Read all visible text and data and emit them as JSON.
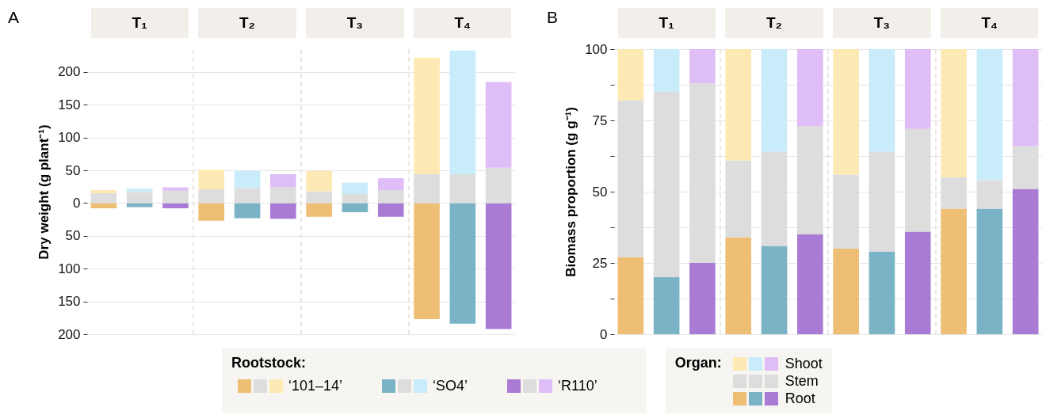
{
  "chart_data": [
    {
      "type": "bar",
      "annotations": [
        "A",
        "T₁",
        "T₂",
        "T₃",
        "T₄"
      ],
      "ylabel": "Dry weight (g plant⁻¹)",
      "categories": [
        null,
        null,
        null,
        null,
        null,
        null,
        null,
        null,
        null,
        null,
        null,
        null
      ],
      "stacked": true,
      "grid": "y",
      "legend": "bottom",
      "legend_title": "Organ:",
      "ylim": [
        -200,
        235
      ],
      "yticks": [
        {
          "value": -200,
          "label": "200"
        },
        {
          "value": -150,
          "label": "150"
        },
        {
          "value": -100,
          "label": "100"
        },
        {
          "value": -50,
          "label": "50"
        },
        0,
        50,
        100,
        150,
        200
      ],
      "series": [
        {
          "name": "Root",
          "colors": [
            "#eebe75",
            "#7bb3c6",
            "#a97bd4",
            "#eebe75",
            "#7bb3c6",
            "#a97bd4",
            "#eebe75",
            "#7bb3c6",
            "#a97bd4",
            "#eebe75",
            "#7bb3c6",
            "#a97bd4"
          ],
          "values": [
            -8,
            -6,
            -8,
            -27,
            -23,
            -24,
            -21,
            -14,
            -21,
            -177,
            -184,
            -192
          ]
        },
        {
          "name": "Stem",
          "colors": [
            "#dddddd",
            "#dddddd",
            "#dddddd",
            "#dddddd",
            "#dddddd",
            "#dddddd",
            "#dddddd",
            "#dddddd",
            "#dddddd",
            "#dddddd",
            "#dddddd",
            "#dddddd"
          ],
          "values": [
            15,
            17,
            19,
            21,
            23,
            24,
            18,
            14,
            20,
            44,
            44,
            54
          ]
        },
        {
          "name": "Shoot",
          "colors": [
            "#fde9b3",
            "#c8ecf9",
            "#dfbdf7",
            "#fde9b3",
            "#c8ecf9",
            "#dfbdf7",
            "#fde9b3",
            "#c8ecf9",
            "#dfbdf7",
            "#fde9b3",
            "#c8ecf9",
            "#dfbdf7"
          ],
          "values": [
            5,
            5,
            5,
            30,
            26,
            20,
            31,
            17,
            18,
            178,
            189,
            131
          ]
        }
      ]
    },
    {
      "type": "bar",
      "annotations": [
        "B",
        "T₁",
        "T₂",
        "T₃",
        "T₄"
      ],
      "ylabel": "Biomass proportion (g g⁻¹)",
      "categories": [
        null,
        null,
        null,
        null,
        null,
        null,
        null,
        null,
        null,
        null,
        null,
        null
      ],
      "stacked": true,
      "grid": "y",
      "ylim": [
        0,
        100
      ],
      "yticks": [
        0,
        {
          "value": 12.5,
          "label": null
        },
        25,
        {
          "value": 37.5,
          "label": null
        },
        50,
        {
          "value": 62.5,
          "label": null
        },
        75,
        {
          "value": 87.5,
          "label": null
        },
        100
      ],
      "series": [
        {
          "colors": [
            "#eebe75",
            "#7bb3c6",
            "#a97bd4",
            "#eebe75",
            "#7bb3c6",
            "#a97bd4",
            "#eebe75",
            "#7bb3c6",
            "#a97bd4",
            "#eebe75",
            "#7bb3c6",
            "#a97bd4"
          ],
          "values": [
            27,
            20,
            25,
            34,
            31,
            35,
            30,
            29,
            36,
            44,
            44,
            51
          ]
        },
        {
          "colors": [
            "#dddddd",
            "#dddddd",
            "#dddddd",
            "#dddddd",
            "#dddddd",
            "#dddddd",
            "#dddddd",
            "#dddddd",
            "#dddddd",
            "#dddddd",
            "#dddddd",
            "#dddddd"
          ],
          "values": [
            55,
            65,
            63,
            27,
            33,
            38,
            26,
            35,
            36,
            11,
            10,
            15
          ]
        },
        {
          "colors": [
            "#fde9b3",
            "#c8ecf9",
            "#dfbdf7",
            "#fde9b3",
            "#c8ecf9",
            "#dfbdf7",
            "#fde9b3",
            "#c8ecf9",
            "#dfbdf7",
            "#fde9b3",
            "#c8ecf9",
            "#dfbdf7"
          ],
          "values": [
            18,
            15,
            12,
            39,
            36,
            27,
            44,
            36,
            28,
            45,
            46,
            34
          ]
        }
      ]
    },
    {
      "type": "other",
      "title": "Rootstock:",
      "annotations": [
        "‘101–14’",
        "‘SO4’",
        "‘R110’"
      ]
    }
  ]
}
